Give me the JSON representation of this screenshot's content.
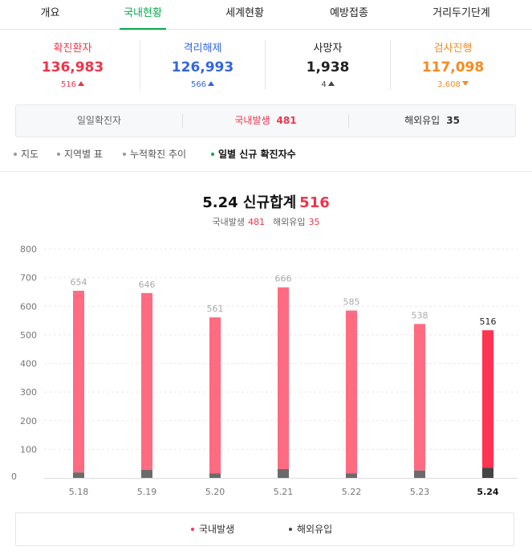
{
  "tabs": [
    {
      "label": "개요"
    },
    {
      "label": "국내현황"
    },
    {
      "label": "세계현황"
    },
    {
      "label": "예방접종"
    },
    {
      "label": "거리두기단계"
    }
  ],
  "stats": [
    {
      "label": "확진환자",
      "value": "136,983",
      "delta": "516",
      "direction": "up",
      "color": "#f0344a",
      "delta_color": "#f0344a"
    },
    {
      "label": "격리해제",
      "value": "126,993",
      "delta": "566",
      "direction": "up",
      "color": "#3366dd",
      "delta_color": "#3366dd"
    },
    {
      "label": "사망자",
      "value": "1,938",
      "delta": "4",
      "direction": "up",
      "color": "#222222",
      "delta_color": "#444444"
    },
    {
      "label": "검사진행",
      "value": "117,098",
      "delta": "3,608",
      "direction": "down",
      "color": "#f68b1f",
      "delta_color": "#f68b1f"
    }
  ],
  "daily": {
    "label": "일일확진자",
    "domestic_label": "국내발생",
    "domestic_value": "481",
    "overseas_label": "해외유입",
    "overseas_value": "35"
  },
  "subtabs": [
    {
      "label": "지도"
    },
    {
      "label": "지역별 표"
    },
    {
      "label": "누적확진 추이"
    },
    {
      "label": "일별 신규 확진자수"
    }
  ],
  "summary": {
    "title": "5.24 신규합계",
    "total": "516",
    "domestic_label": "국내발생",
    "domestic_value": "481",
    "overseas_label": "해외유입",
    "overseas_value": "35"
  },
  "chart_data": {
    "type": "bar",
    "stacked": true,
    "categories": [
      "5.18",
      "5.19",
      "5.20",
      "5.21",
      "5.22",
      "5.23",
      "5.24"
    ],
    "totals": [
      654,
      646,
      561,
      666,
      585,
      538,
      516
    ],
    "series": [
      {
        "name": "국내발생",
        "values": [
          635,
          618,
          545,
          635,
          569,
          512,
          481
        ],
        "color": "#ff6b81",
        "highlight_color": "#ff3352"
      },
      {
        "name": "해외유입",
        "values": [
          19,
          28,
          16,
          31,
          16,
          26,
          35
        ],
        "color": "#6b6b6b",
        "highlight_color": "#444444"
      }
    ],
    "highlight_index": 6,
    "yticks": [
      0,
      100,
      200,
      300,
      400,
      500,
      600,
      700,
      800
    ],
    "ylim": [
      0,
      800
    ],
    "grid": true,
    "legend_position": "bottom"
  },
  "legend": [
    {
      "label": "국내발생",
      "color": "#ff3352"
    },
    {
      "label": "해외유입",
      "color": "#444444"
    }
  ]
}
